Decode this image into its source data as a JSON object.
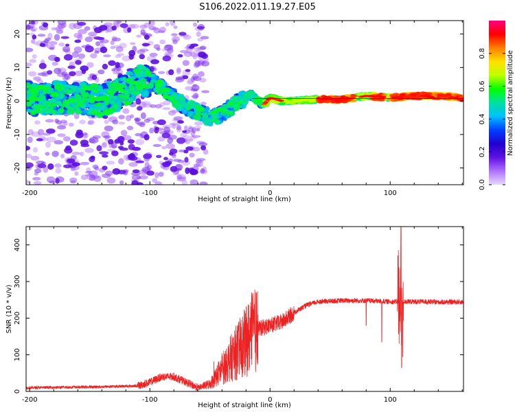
{
  "title": "S106.2022.011.19.27.E05",
  "colors": {
    "snr_line": "#ee2222",
    "background": "#ffffff"
  },
  "chart_data": [
    {
      "type": "heatmap",
      "xlabel": "Height of straight line (km)",
      "ylabel": "Frequency (Hz)",
      "xlim": [
        -203,
        161
      ],
      "ylim": [
        -25,
        24
      ],
      "xticks": [
        -200,
        -100,
        0,
        100
      ],
      "yticks": [
        -20,
        -10,
        0,
        10,
        20
      ],
      "colorbar": {
        "label": "Normalized spectral amplitude",
        "range": [
          0,
          1
        ],
        "ticks": [
          0.0,
          0.2,
          0.4,
          0.6,
          0.8
        ],
        "colormap": [
          "#e8d8ff",
          "#b070ff",
          "#6010e0",
          "#2000d0",
          "#0040ff",
          "#00c0ff",
          "#00e0a0",
          "#00ff00",
          "#c0ff00",
          "#ffe000",
          "#ff8000",
          "#ff0000",
          "#ff0080"
        ]
      },
      "ridge": {
        "x": [
          -200,
          -180,
          -160,
          -140,
          -120,
          -110,
          -100,
          -90,
          -80,
          -70,
          -60,
          -50,
          -40,
          -30,
          -20,
          -15,
          -10,
          -5,
          0,
          10,
          20,
          40,
          60,
          80,
          100,
          120,
          140,
          161
        ],
        "y": [
          0,
          1,
          1,
          0,
          3,
          6,
          6,
          4,
          1,
          -2,
          -3,
          -5,
          -4,
          -1,
          1,
          2,
          0,
          -1,
          1,
          0,
          0,
          0.5,
          0.5,
          1.5,
          1,
          1.5,
          1.5,
          1
        ]
      }
    },
    {
      "type": "line",
      "xlabel": "Height of straight line (km)",
      "ylabel": "SNR (10 * v/v)",
      "xlim": [
        -203,
        161
      ],
      "ylim": [
        0,
        450
      ],
      "xticks": [
        -200,
        -100,
        0,
        100
      ],
      "yticks": [
        0,
        100,
        200,
        300,
        400
      ],
      "trend": {
        "x": [
          -203,
          -150,
          -110,
          -100,
          -90,
          -80,
          -70,
          -60,
          -50,
          -40,
          -30,
          -20,
          -15,
          -10,
          -5,
          0,
          10,
          20,
          30,
          40,
          60,
          80,
          100,
          120,
          140,
          161
        ],
        "y": [
          10,
          12,
          15,
          25,
          40,
          40,
          25,
          10,
          20,
          60,
          100,
          135,
          160,
          170,
          175,
          180,
          190,
          215,
          235,
          245,
          248,
          248,
          245,
          245,
          244,
          244
        ]
      },
      "spikes": [
        {
          "x": 93,
          "y": 135
        },
        {
          "x": 107,
          "y": 405
        },
        {
          "x": 109,
          "y": 450
        },
        {
          "x": 109.5,
          "y": 65
        },
        {
          "x": 80,
          "y": 180
        }
      ]
    }
  ]
}
